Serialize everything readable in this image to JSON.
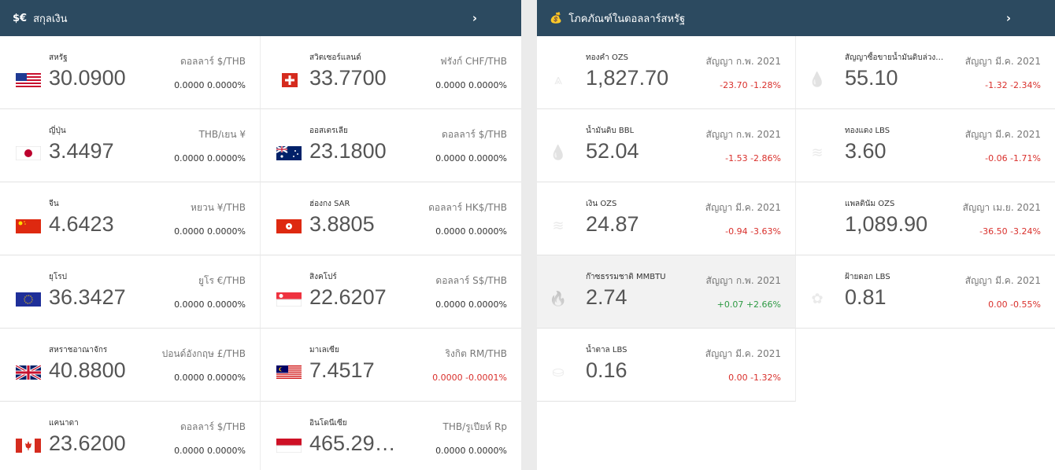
{
  "currency": {
    "header_icon": "$€",
    "title": "สกุลเงิน",
    "chevron": "›",
    "items": [
      {
        "name": "สหรัฐ",
        "value": "30.0900",
        "unit": "ดอลลาร์ $/THB",
        "change": "0.0000 0.0000%",
        "change_type": "zero",
        "flag": "us"
      },
      {
        "name": "สวิตเซอร์แลนด์",
        "value": "33.7700",
        "unit": "ฟรังก์ CHF/THB",
        "change": "0.0000 0.0000%",
        "change_type": "zero",
        "flag": "ch"
      },
      {
        "name": "ญี่ปุ่น",
        "value": "3.4497",
        "unit": "THB/เยน ¥",
        "change": "0.0000 0.0000%",
        "change_type": "zero",
        "flag": "jp"
      },
      {
        "name": "ออสเตรเลีย",
        "value": "23.1800",
        "unit": "ดอลลาร์ $/THB",
        "change": "0.0000 0.0000%",
        "change_type": "zero",
        "flag": "au"
      },
      {
        "name": "จีน",
        "value": "4.6423",
        "unit": "หยวน ¥/THB",
        "change": "0.0000 0.0000%",
        "change_type": "zero",
        "flag": "cn"
      },
      {
        "name": "ฮ่องกง SAR",
        "value": "3.8805",
        "unit": "ดอลลาร์ HK$/THB",
        "change": "0.0000 0.0000%",
        "change_type": "zero",
        "flag": "hk"
      },
      {
        "name": "ยุโรป",
        "value": "36.3427",
        "unit": "ยูโร €/THB",
        "change": "0.0000 0.0000%",
        "change_type": "zero",
        "flag": "eu"
      },
      {
        "name": "สิงคโปร์",
        "value": "22.6207",
        "unit": "ดอลลาร์ S$/THB",
        "change": "0.0000 0.0000%",
        "change_type": "zero",
        "flag": "sg"
      },
      {
        "name": "สหราชอาณาจักร",
        "value": "40.8800",
        "unit": "ปอนด์อังกฤษ £/THB",
        "change": "0.0000 0.0000%",
        "change_type": "zero",
        "flag": "gb"
      },
      {
        "name": "มาเลเซีย",
        "value": "7.4517",
        "unit": "ริงกิต RM/THB",
        "change": "0.0000 -0.0001%",
        "change_type": "neg",
        "flag": "my"
      },
      {
        "name": "แคนาดา",
        "value": "23.6200",
        "unit": "ดอลลาร์ $/THB",
        "change": "0.0000 0.0000%",
        "change_type": "zero",
        "flag": "ca"
      },
      {
        "name": "อินโดนีเซีย",
        "value": "465.29…",
        "unit": "THB/รูเปียห์ Rp",
        "change": "0.0000 0.0000%",
        "change_type": "zero",
        "flag": "id"
      }
    ]
  },
  "commodity": {
    "header_icon": "💰",
    "title": "โภคภัณฑ์ในดอลลาร์สหรัฐ",
    "chevron": "›",
    "items": [
      {
        "name": "ทองคำ OZS",
        "value": "1,827.70",
        "unit": "สัญญา ก.พ. 2021",
        "change": "-23.70 -1.28%",
        "change_type": "neg",
        "icon": "gold-bars-icon",
        "glyph": "⩓"
      },
      {
        "name": "สัญญาซื้อขายน้ำมันดิบล่วงหน้า",
        "value": "55.10",
        "unit": "สัญญา มี.ค. 2021",
        "change": "-1.32 -2.34%",
        "change_type": "neg",
        "icon": "oil-drop-icon",
        "glyph": "💧"
      },
      {
        "name": "น้ำมันดิบ BBL",
        "value": "52.04",
        "unit": "สัญญา ก.พ. 2021",
        "change": "-1.53 -2.86%",
        "change_type": "neg",
        "icon": "oil-drop-icon",
        "glyph": "💧"
      },
      {
        "name": "ทองแดง LBS",
        "value": "3.60",
        "unit": "สัญญา มี.ค. 2021",
        "change": "-0.06 -1.71%",
        "change_type": "neg",
        "icon": "coin-stack-icon",
        "glyph": "≋"
      },
      {
        "name": "เงิน OZS",
        "value": "24.87",
        "unit": "สัญญา มี.ค. 2021",
        "change": "-0.94 -3.63%",
        "change_type": "neg",
        "icon": "coin-stack-icon",
        "glyph": "≋"
      },
      {
        "name": "แพลตินัม OZS",
        "value": "1,089.90",
        "unit": "สัญญา เม.ย. 2021",
        "change": "-36.50 -3.24%",
        "change_type": "neg",
        "icon": "",
        "glyph": ""
      },
      {
        "name": "ก๊าซธรรมชาติ MMBTU",
        "value": "2.74",
        "unit": "สัญญา ก.พ. 2021",
        "change": "+0.07 +2.66%",
        "change_type": "pos",
        "icon": "flame-icon",
        "glyph": "🔥"
      },
      {
        "name": "ฝ้ายดอก LBS",
        "value": "0.81",
        "unit": "สัญญา มี.ค. 2021",
        "change": "0.00 -0.55%",
        "change_type": "neg",
        "icon": "cotton-icon",
        "glyph": "✿"
      },
      {
        "name": "น้ำตาล LBS",
        "value": "0.16",
        "unit": "สัญญา มี.ค. 2021",
        "change": "0.00 -1.32%",
        "change_type": "neg",
        "icon": "sugar-icon",
        "glyph": "⛀"
      }
    ]
  }
}
